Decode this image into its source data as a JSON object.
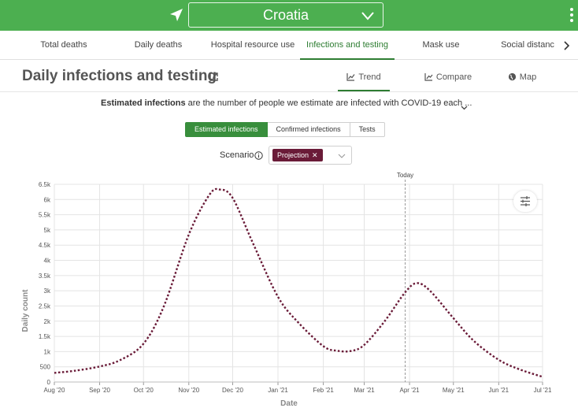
{
  "topbar": {
    "country": "Croatia",
    "bg_color": "#4caf50",
    "location_icon": "navigation-arrow-icon",
    "menu_icon": "kebab-menu-icon"
  },
  "tabs": [
    {
      "label": "Total deaths",
      "active": false
    },
    {
      "label": "Daily deaths",
      "active": false
    },
    {
      "label": "Hospital resource use",
      "active": false
    },
    {
      "label": "Infections and testing",
      "active": true
    },
    {
      "label": "Mask use",
      "active": false
    },
    {
      "label": "Social distanc",
      "active": false
    }
  ],
  "header": {
    "title": "Daily infections and testing",
    "views": [
      {
        "label": "Trend",
        "icon": "line-chart-icon",
        "active": true
      },
      {
        "label": "Compare",
        "icon": "bar-compare-icon",
        "active": false
      },
      {
        "label": "Map",
        "icon": "globe-icon",
        "active": false
      }
    ]
  },
  "description": {
    "bold": "Estimated infections",
    "text": " are the number of people we estimate are infected with COVID-19 each ..."
  },
  "metric_buttons": [
    {
      "label": "Estimated infections",
      "active": true
    },
    {
      "label": "Confirmed infections",
      "active": false
    },
    {
      "label": "Tests",
      "active": false
    }
  ],
  "scenario": {
    "label": "Scenario",
    "selected": "Projection",
    "chip_color": "#6a1b38"
  },
  "chart_data": {
    "type": "line",
    "xlabel": "Date",
    "ylabel": "Daily count",
    "x_ticks": [
      "Aug '20",
      "Sep '20",
      "Oct '20",
      "Nov '20",
      "Dec '20",
      "Jan '21",
      "Feb '21",
      "Mar '21",
      "Apr '21",
      "May '21",
      "Jun '21",
      "Jul '21"
    ],
    "y_ticks": [
      "0",
      "500",
      "1k",
      "1.5k",
      "2k",
      "2.5k",
      "3k",
      "3.5k",
      "4k",
      "4.5k",
      "5k",
      "5.5k",
      "6k",
      "6.5k"
    ],
    "ylim": [
      0,
      6500
    ],
    "grid": true,
    "today_label": "Today",
    "today_x": "2021-03-29",
    "series": [
      {
        "name": "Projection",
        "color": "#6a1b38",
        "style": "dotted",
        "x": [
          "2020-08-01",
          "2020-08-15",
          "2020-09-01",
          "2020-09-15",
          "2020-10-01",
          "2020-10-15",
          "2020-11-01",
          "2020-11-15",
          "2020-11-22",
          "2020-12-01",
          "2020-12-15",
          "2021-01-01",
          "2021-01-15",
          "2021-02-01",
          "2021-02-10",
          "2021-02-20",
          "2021-03-01",
          "2021-03-15",
          "2021-03-29",
          "2021-04-06",
          "2021-04-15",
          "2021-05-01",
          "2021-05-15",
          "2021-06-01",
          "2021-06-15",
          "2021-07-01"
        ],
        "y": [
          300,
          370,
          510,
          720,
          1260,
          2500,
          4850,
          6150,
          6330,
          6050,
          4550,
          2800,
          1950,
          1180,
          1030,
          1020,
          1220,
          2000,
          2950,
          3250,
          3000,
          2100,
          1350,
          730,
          420,
          170
        ]
      }
    ]
  }
}
